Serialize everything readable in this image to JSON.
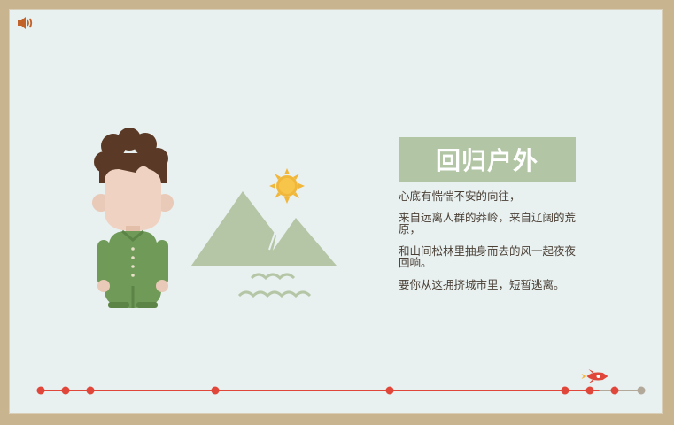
{
  "page": {
    "title": "回归户外",
    "paragraphs": [
      "心底有惴惴不安的向往，",
      "来自远离人群的莽岭，来自辽阔的荒原，",
      "和山间松林里抽身而去的风一起夜夜回响。",
      "要你从这拥挤城市里，短暂逃离。"
    ]
  },
  "controls": {
    "sound_icon": "speaker-icon"
  },
  "timeline": {
    "progress": 0.93,
    "stops": 9,
    "current_stop": 8,
    "indicator_icon": "rocket-icon"
  },
  "colors": {
    "background": "#e8f0f0",
    "frame": "#c8b48e",
    "accent": "#e0473a",
    "title_box": "#b2c5a4",
    "green": "#6f9a57",
    "mountain": "#b4c6a6",
    "sun": "#f0b73a"
  }
}
